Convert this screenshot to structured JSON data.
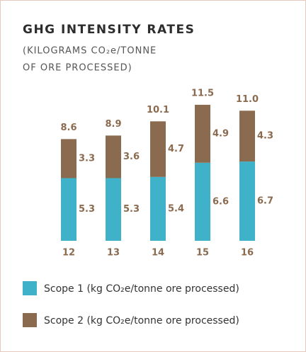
{
  "chart_data": {
    "type": "stacked_bar",
    "title": "GHG INTENSITY RATES",
    "subtitle": [
      "(KILOGRAMS CO₂e/TONNE",
      "OF ORE PROCESSED)"
    ],
    "categories": [
      "12",
      "13",
      "14",
      "15",
      "16"
    ],
    "series": [
      {
        "name": "Scope 1 (kg CO₂e/tonne ore processed)",
        "color": "#3fb1c9",
        "values": [
          5.3,
          5.3,
          5.4,
          6.6,
          6.7
        ]
      },
      {
        "name": "Scope 2 (kg CO₂e/tonne ore processed)",
        "color": "#8b6b4f",
        "values": [
          3.3,
          3.6,
          4.7,
          4.9,
          4.3
        ]
      }
    ],
    "totals": [
      8.6,
      8.9,
      10.1,
      11.5,
      11.0
    ],
    "total_labels": [
      "8.6",
      "8.9",
      "10.1",
      "11.5",
      "11.0"
    ]
  }
}
